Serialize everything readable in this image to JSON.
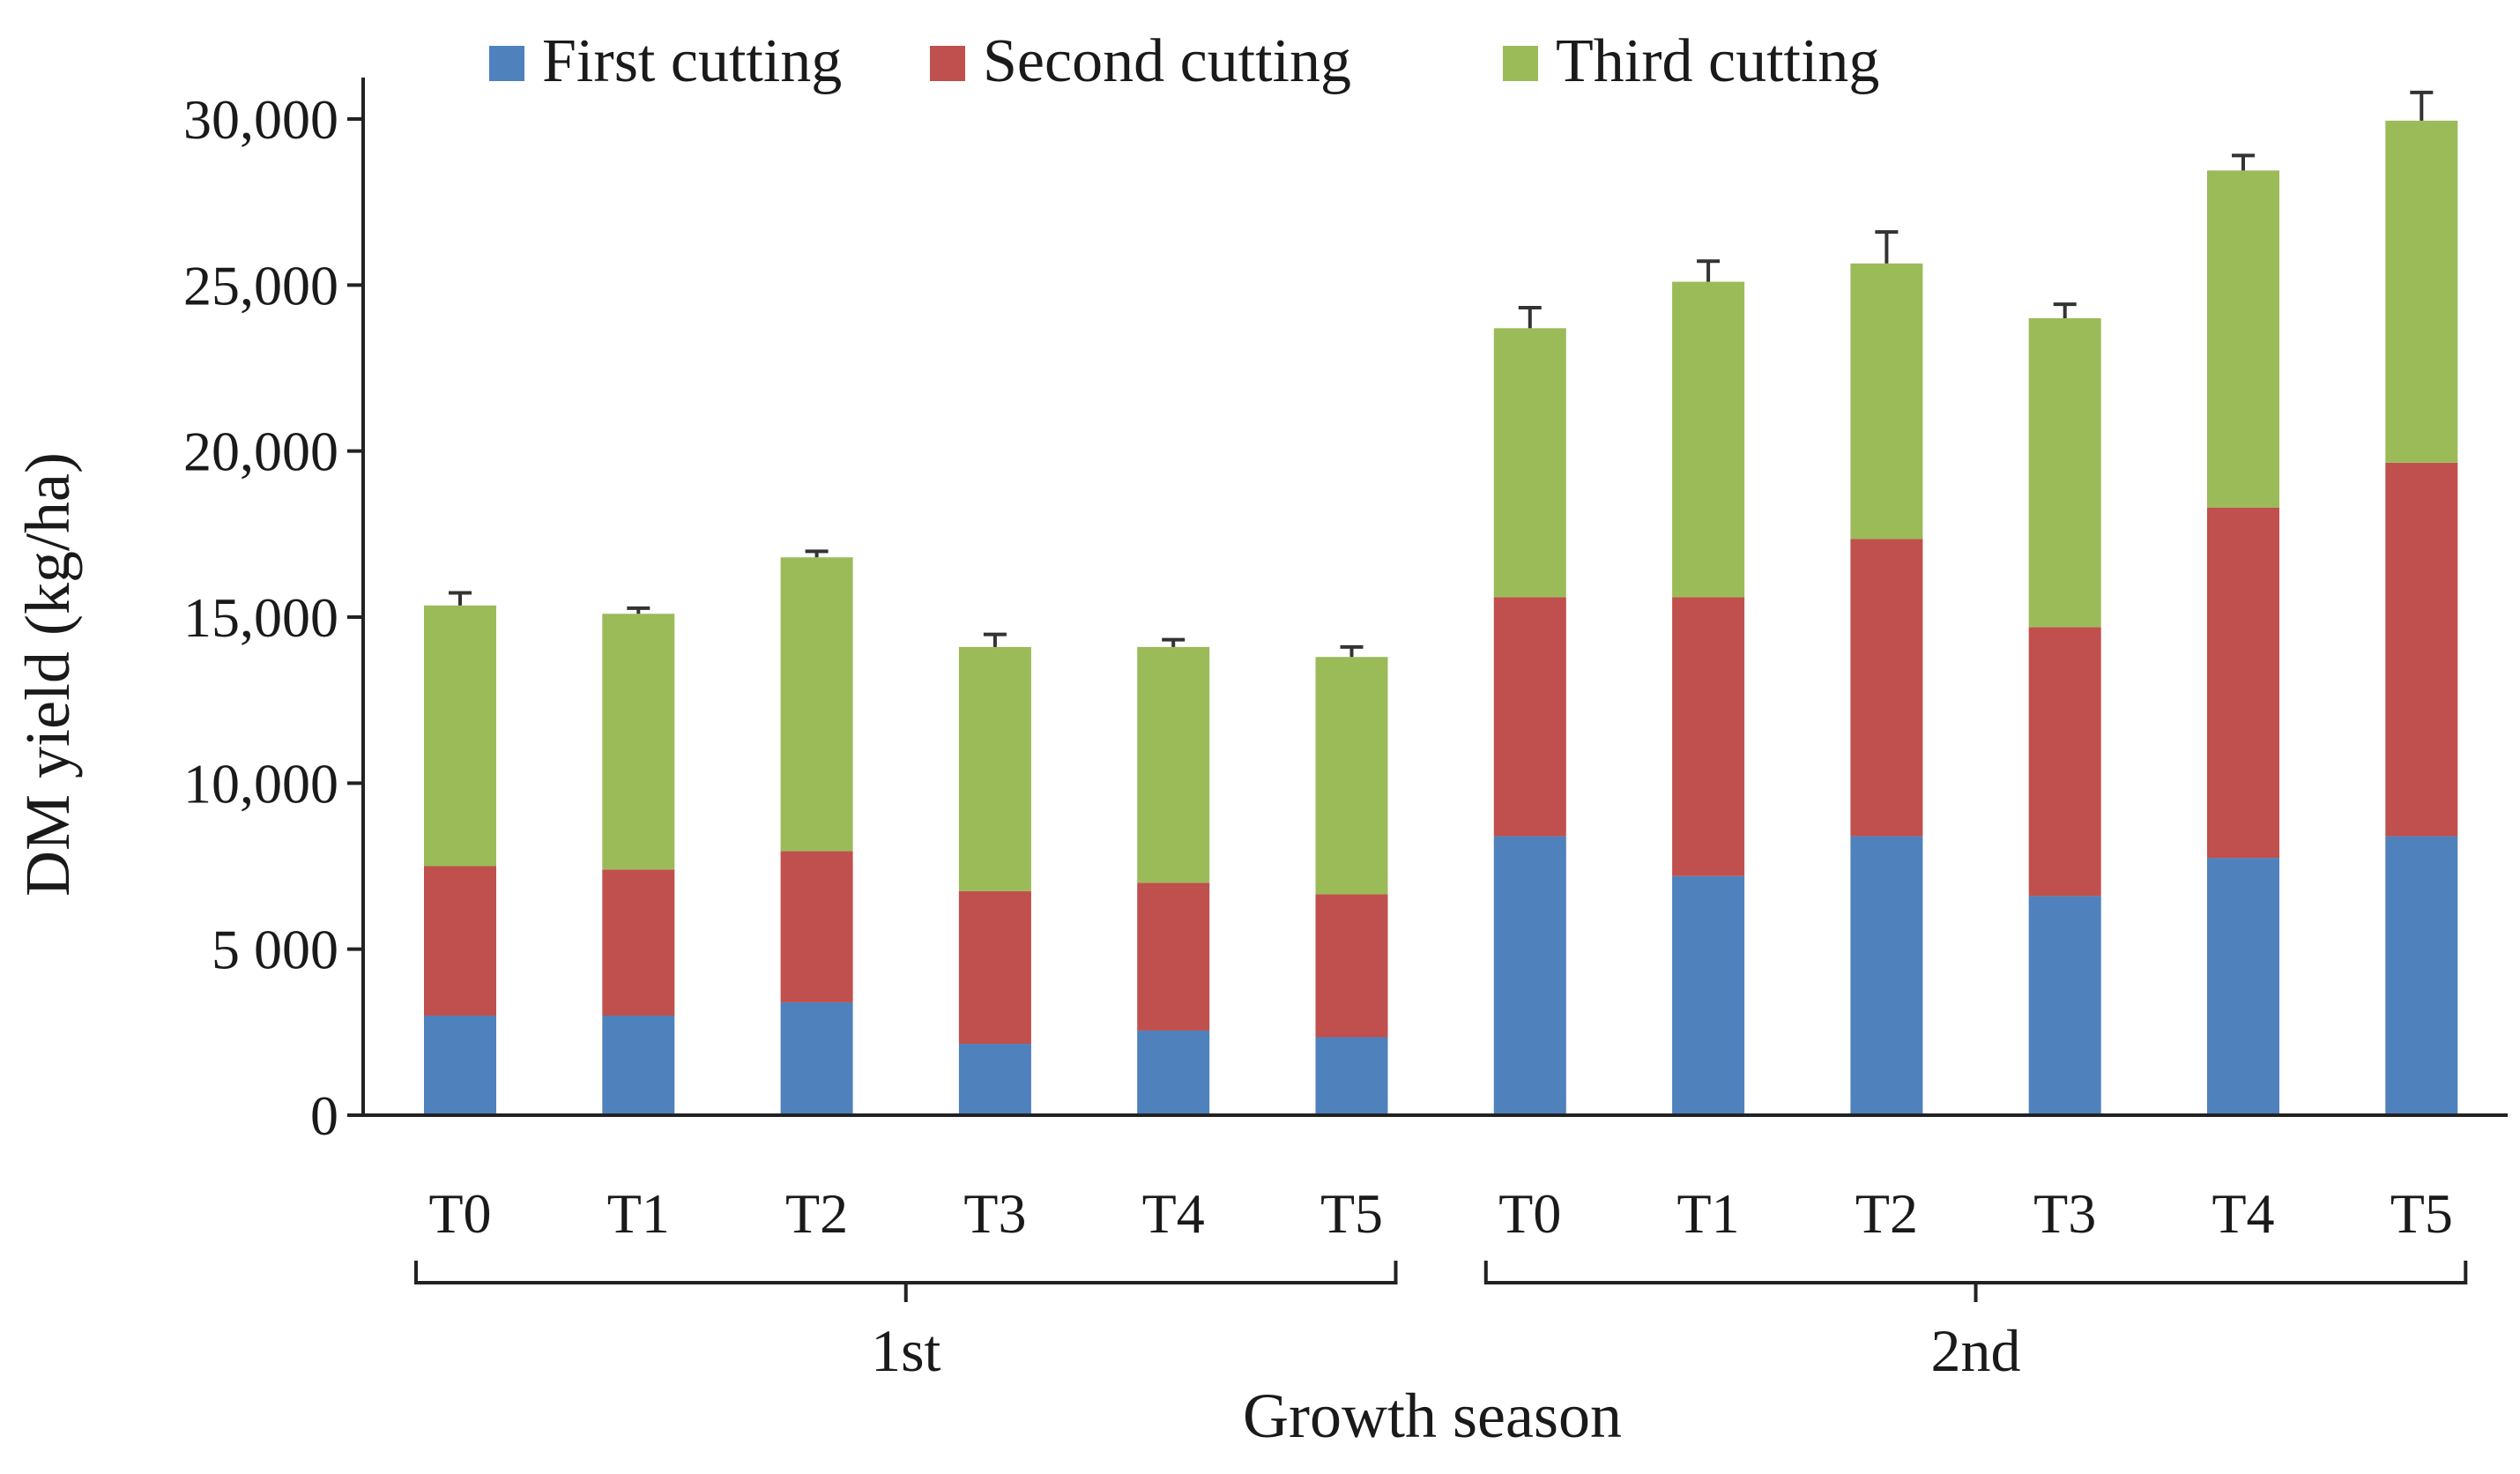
{
  "chart_data": {
    "type": "bar",
    "stacked": true,
    "title": "",
    "xlabel": "Growth season",
    "ylabel": "DM yield (kg/ha)",
    "ylim": [
      0,
      30000
    ],
    "yticks": [
      0,
      5000,
      10000,
      15000,
      20000,
      25000,
      30000
    ],
    "ytick_labels": [
      "0",
      "5 000",
      "10,000",
      "15,000",
      "20,000",
      "25,000",
      "30,000"
    ],
    "grid": false,
    "legend_position": "top",
    "groups": [
      {
        "label": "1st",
        "categories": [
          "T0",
          "T1",
          "T2",
          "T3",
          "T4",
          "T5"
        ]
      },
      {
        "label": "2nd",
        "categories": [
          "T0",
          "T1",
          "T2",
          "T3",
          "T4",
          "T5"
        ]
      }
    ],
    "categories": [
      "T0",
      "T1",
      "T2",
      "T3",
      "T4",
      "T5",
      "T0",
      "T1",
      "T2",
      "T3",
      "T4",
      "T5"
    ],
    "series": [
      {
        "name": "First cutting",
        "color": "#4f81bd",
        "values": [
          3000,
          3000,
          3400,
          2150,
          2550,
          2350,
          8400,
          7200,
          8400,
          6600,
          7750,
          8400
        ]
      },
      {
        "name": "Second cutting",
        "color": "#c0504d",
        "values": [
          4500,
          4400,
          4550,
          4600,
          4450,
          4300,
          7200,
          8400,
          8950,
          8100,
          10550,
          11250
        ]
      },
      {
        "name": "Third cutting",
        "color": "#9bbb59",
        "values": [
          7850,
          7700,
          8850,
          7350,
          7100,
          7150,
          8100,
          9500,
          8300,
          9300,
          10150,
          10300
        ]
      }
    ],
    "error_bars": [
      380,
      170,
      180,
      380,
      220,
      300,
      620,
      620,
      950,
      420,
      450,
      850
    ]
  }
}
